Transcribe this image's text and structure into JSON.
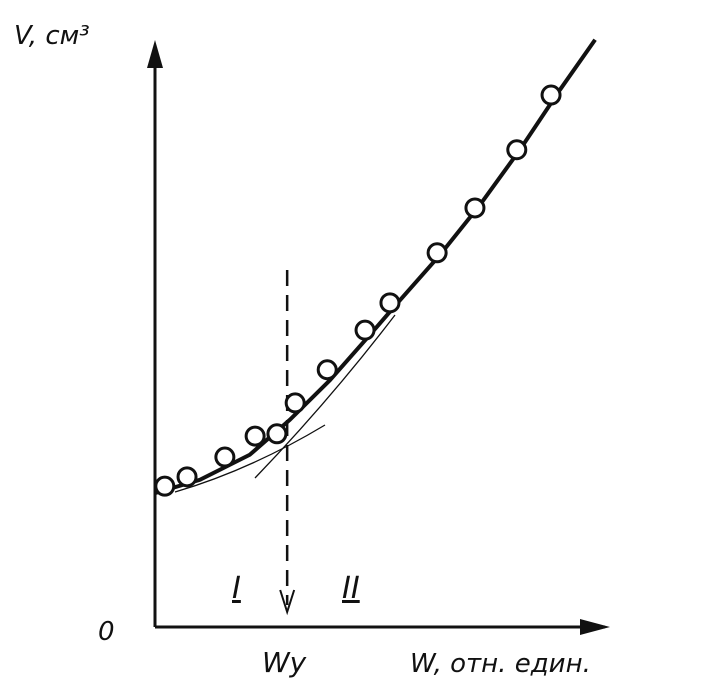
{
  "chart_data": {
    "type": "scatter-curve",
    "y_label": "V, см³",
    "x_label": "W, отн. един.",
    "origin_label": "0",
    "xlim": [
      0,
      100
    ],
    "ylim": [
      0,
      100
    ],
    "series": [
      {
        "marker": "circle",
        "color": "#111111",
        "x": [
          2.2,
          7.2,
          15.7,
          22.5,
          27.4,
          31.5,
          38.7,
          47.2,
          52.8,
          63.4,
          71.9,
          81.3,
          89.0
        ],
        "values": [
          24.2,
          25.8,
          29.2,
          32.8,
          33.2,
          38.5,
          44.2,
          51.0,
          55.7,
          64.3,
          72.0,
          82.0,
          91.4
        ]
      },
      {
        "marker": "line",
        "color": "#111111",
        "x": [
          0,
          10.1,
          21.3,
          30.3,
          39.3,
          48.3,
          55.1,
          64.0,
          73.0,
          82.0,
          91.0,
          98.9
        ],
        "values": [
          23.0,
          25.3,
          29.6,
          35.6,
          42.4,
          50.2,
          56.2,
          63.9,
          72.5,
          82.0,
          92.3,
          100.9
        ]
      }
    ],
    "marker_line": {
      "x": 29.7,
      "label": "Wy"
    },
    "regions": [
      "I",
      "II"
    ]
  }
}
